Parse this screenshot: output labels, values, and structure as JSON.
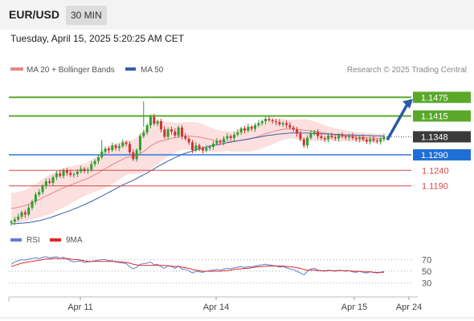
{
  "header": {
    "symbol": "EUR/USD",
    "timeframe": "30 MIN",
    "datetime": "Tuesday, April 15, 2025 5:20:25 AM CET"
  },
  "legend": {
    "bollinger": "MA 20 + Bollinger Bands",
    "ma50": "MA 50",
    "credit": "Research © 2025 Trading Central",
    "rsi": "RSI",
    "rsi_ma": "9MA"
  },
  "colors": {
    "candle_up": "#2e9e2e",
    "candle_down": "#d03232",
    "ma20": "#e88686",
    "band_fill": "#fbd9d9",
    "ma50": "#3a5ea8",
    "resistance": "#5aa82a",
    "pivot": "#1f6fd6",
    "support": "#d94848",
    "rsi": "#5b80d8",
    "rsi_ma": "#e02828"
  },
  "chart_data": [
    {
      "type": "candlestick",
      "title": "EUR/USD",
      "x_ticks": [
        "Apr 11",
        "Apr 14",
        "Apr 15",
        "Apr 24"
      ],
      "ylim": [
        1.106,
        1.153
      ],
      "last_price": 1.1348,
      "levels": [
        {
          "value": 1.1475,
          "label": "1.1475",
          "kind": "resistance"
        },
        {
          "value": 1.1415,
          "label": "1.1415",
          "kind": "resistance"
        },
        {
          "value": 1.1348,
          "label": "1.1348",
          "kind": "last"
        },
        {
          "value": 1.129,
          "label": "1.1290",
          "kind": "pivot"
        },
        {
          "value": 1.124,
          "label": "1.1240",
          "kind": "support"
        },
        {
          "value": 1.119,
          "label": "1.1190",
          "kind": "support"
        }
      ],
      "target": {
        "from": 1.1338,
        "to": 1.1475
      },
      "close": [
        1.1075,
        1.1082,
        1.1091,
        1.1105,
        1.1098,
        1.112,
        1.114,
        1.1162,
        1.117,
        1.119,
        1.1205,
        1.12,
        1.1218,
        1.123,
        1.1222,
        1.124,
        1.1232,
        1.1225,
        1.1228,
        1.1236,
        1.1245,
        1.1238,
        1.1242,
        1.126,
        1.127,
        1.1282,
        1.13,
        1.131,
        1.1305,
        1.132,
        1.1312,
        1.1318,
        1.133,
        1.1325,
        1.1298,
        1.1276,
        1.1305,
        1.135,
        1.1362,
        1.1385,
        1.1412,
        1.139,
        1.1398,
        1.1372,
        1.1348,
        1.1372,
        1.1365,
        1.1352,
        1.1378,
        1.135,
        1.1342,
        1.133,
        1.1305,
        1.132,
        1.131,
        1.1304,
        1.1312,
        1.1316,
        1.1326,
        1.1334,
        1.133,
        1.1342,
        1.135,
        1.1344,
        1.1355,
        1.1362,
        1.1375,
        1.1368,
        1.138,
        1.1374,
        1.1385,
        1.1392,
        1.1398,
        1.1406,
        1.1402,
        1.1398,
        1.1395,
        1.1388,
        1.1392,
        1.1386,
        1.1378,
        1.1372,
        1.1358,
        1.134,
        1.132,
        1.1345,
        1.136,
        1.1364,
        1.135,
        1.1344,
        1.134,
        1.1352,
        1.1347,
        1.1343,
        1.1352,
        1.1349,
        1.1346,
        1.135,
        1.1344,
        1.134,
        1.1346,
        1.1339,
        1.1333,
        1.1341,
        1.1336,
        1.1333,
        1.134,
        1.1348
      ],
      "ma20": [
        1.1118,
        1.1119,
        1.1121,
        1.1124,
        1.1127,
        1.1131,
        1.1136,
        1.1141,
        1.1146,
        1.1152,
        1.1158,
        1.1162,
        1.1168,
        1.1174,
        1.1179,
        1.1184,
        1.1189,
        1.1193,
        1.1197,
        1.1201,
        1.1206,
        1.121,
        1.1214,
        1.122,
        1.1226,
        1.1232,
        1.1239,
        1.1246,
        1.1252,
        1.1259,
        1.1264,
        1.127,
        1.1276,
        1.1281,
        1.1283,
        1.1284,
        1.1288,
        1.1294,
        1.1301,
        1.1309,
        1.1319,
        1.1325,
        1.1331,
        1.1335,
        1.1337,
        1.134,
        1.1343,
        1.1345,
        1.1348,
        1.135,
        1.1351,
        1.1351,
        1.1349,
        1.1349,
        1.1347,
        1.1345,
        1.1342,
        1.134,
        1.1337,
        1.1335,
        1.1334,
        1.1334,
        1.1334,
        1.1333,
        1.1334,
        1.1335,
        1.1337,
        1.1338,
        1.134,
        1.1342,
        1.1346,
        1.135,
        1.1354,
        1.1358,
        1.1361,
        1.1364,
        1.1367,
        1.137,
        1.1372,
        1.1373,
        1.1373,
        1.1373,
        1.1372,
        1.1371,
        1.1369,
        1.1368,
        1.1367,
        1.1366,
        1.1364,
        1.1362,
        1.136,
        1.1358,
        1.1356,
        1.1354,
        1.1353,
        1.1352,
        1.1351,
        1.135,
        1.1349,
        1.1348,
        1.1347,
        1.1346,
        1.1345,
        1.1345,
        1.1344,
        1.1343,
        1.1343,
        1.1343
      ],
      "ma50": [
        1.1068,
        1.1068,
        1.1069,
        1.107,
        1.1071,
        1.1072,
        1.1074,
        1.1076,
        1.1078,
        1.1081,
        1.1084,
        1.1087,
        1.1091,
        1.1095,
        1.1099,
        1.1103,
        1.1107,
        1.1111,
        1.1116,
        1.112,
        1.1125,
        1.113,
        1.1135,
        1.114,
        1.1146,
        1.1151,
        1.1157,
        1.1163,
        1.1169,
        1.1175,
        1.1181,
        1.1187,
        1.1193,
        1.1198,
        1.1203,
        1.1208,
        1.1214,
        1.122,
        1.1226,
        1.1232,
        1.1239,
        1.1245,
        1.1252,
        1.1258,
        1.1264,
        1.127,
        1.1275,
        1.1281,
        1.1286,
        1.1291,
        1.1295,
        1.1299,
        1.1302,
        1.1306,
        1.1309,
        1.1312,
        1.1315,
        1.1318,
        1.132,
        1.1322,
        1.1324,
        1.1327,
        1.1329,
        1.1331,
        1.1333,
        1.1335,
        1.1337,
        1.1339,
        1.1341,
        1.1343,
        1.1345,
        1.1347,
        1.1349,
        1.1351,
        1.1353,
        1.1354,
        1.1356,
        1.1357,
        1.1358,
        1.1359,
        1.136,
        1.136,
        1.136,
        1.136,
        1.136,
        1.136,
        1.1359,
        1.1359,
        1.1358,
        1.1358,
        1.1357,
        1.1357,
        1.1356,
        1.1356,
        1.1355,
        1.1355,
        1.1354,
        1.1354,
        1.1354,
        1.1353,
        1.1353,
        1.1352,
        1.1352,
        1.1352,
        1.1351,
        1.1351,
        1.1351,
        1.135
      ],
      "band_width": [
        0.005,
        0.005,
        0.005,
        0.005,
        0.005,
        0.0052,
        0.0054,
        0.0056,
        0.0058,
        0.006,
        0.0062,
        0.0063,
        0.0064,
        0.0064,
        0.0064,
        0.0063,
        0.0062,
        0.006,
        0.0058,
        0.0056,
        0.0054,
        0.0052,
        0.0052,
        0.0053,
        0.0055,
        0.0057,
        0.006,
        0.0062,
        0.0063,
        0.0063,
        0.0062,
        0.006,
        0.0058,
        0.0056,
        0.0054,
        0.0055,
        0.0058,
        0.0064,
        0.0068,
        0.0072,
        0.0076,
        0.0074,
        0.007,
        0.0066,
        0.006,
        0.0056,
        0.0052,
        0.0048,
        0.0046,
        0.0044,
        0.0044,
        0.0045,
        0.0046,
        0.0046,
        0.0045,
        0.0044,
        0.0042,
        0.004,
        0.0038,
        0.0036,
        0.0034,
        0.0033,
        0.0032,
        0.0032,
        0.0033,
        0.0035,
        0.0037,
        0.0038,
        0.004,
        0.0041,
        0.0042,
        0.0043,
        0.0043,
        0.0043,
        0.0042,
        0.004,
        0.0038,
        0.0036,
        0.0034,
        0.0032,
        0.003,
        0.003,
        0.0032,
        0.0034,
        0.0036,
        0.0036,
        0.0034,
        0.0032,
        0.003,
        0.0028,
        0.0026,
        0.0024,
        0.0022,
        0.0021,
        0.002,
        0.0019,
        0.0018,
        0.0017,
        0.0016,
        0.0015,
        0.0015,
        0.0015,
        0.0015,
        0.0015,
        0.0015,
        0.0015,
        0.0015,
        0.0015
      ]
    },
    {
      "type": "line",
      "title": "RSI",
      "y_ticks": [
        70,
        50,
        30
      ],
      "ylim": [
        10,
        90
      ],
      "series": [
        {
          "name": "RSI",
          "values": [
            62,
            66,
            68,
            70,
            69,
            71,
            72,
            73,
            72,
            74,
            75,
            73,
            74,
            75,
            72,
            74,
            71,
            68,
            66,
            67,
            68,
            65,
            66,
            67,
            68,
            69,
            70,
            70,
            68,
            68,
            66,
            65,
            64,
            63,
            58,
            54,
            57,
            62,
            63,
            64,
            66,
            61,
            62,
            58,
            55,
            60,
            58,
            55,
            59,
            54,
            53,
            51,
            47,
            50,
            49,
            48,
            50,
            51,
            52,
            53,
            52,
            54,
            55,
            54,
            56,
            57,
            58,
            56,
            58,
            57,
            59,
            60,
            61,
            62,
            61,
            60,
            59,
            57,
            58,
            56,
            54,
            53,
            50,
            47,
            44,
            50,
            54,
            55,
            52,
            51,
            50,
            52,
            51,
            50,
            52,
            51,
            50,
            51,
            49,
            48,
            50,
            48,
            47,
            49,
            48,
            47,
            48,
            50
          ]
        },
        {
          "name": "9MA",
          "values": [
            58,
            60,
            62,
            64,
            65,
            66,
            67,
            68,
            69,
            70,
            71,
            71,
            72,
            72,
            72,
            72,
            72,
            71,
            70,
            70,
            69,
            68,
            67,
            67,
            67,
            67,
            67,
            67,
            67,
            67,
            67,
            66,
            66,
            65,
            64,
            62,
            61,
            60,
            60,
            60,
            60,
            60,
            60,
            60,
            60,
            59,
            59,
            58,
            58,
            57,
            56,
            55,
            53,
            52,
            51,
            50,
            50,
            50,
            50,
            50,
            50,
            51,
            51,
            52,
            53,
            54,
            54,
            55,
            55,
            56,
            57,
            58,
            58,
            59,
            59,
            59,
            59,
            59,
            59,
            58,
            58,
            57,
            56,
            55,
            53,
            52,
            52,
            52,
            51,
            51,
            51,
            51,
            51,
            51,
            51,
            51,
            51,
            51,
            50,
            50,
            50,
            49,
            49,
            49,
            48,
            48,
            48,
            48
          ]
        }
      ]
    }
  ]
}
